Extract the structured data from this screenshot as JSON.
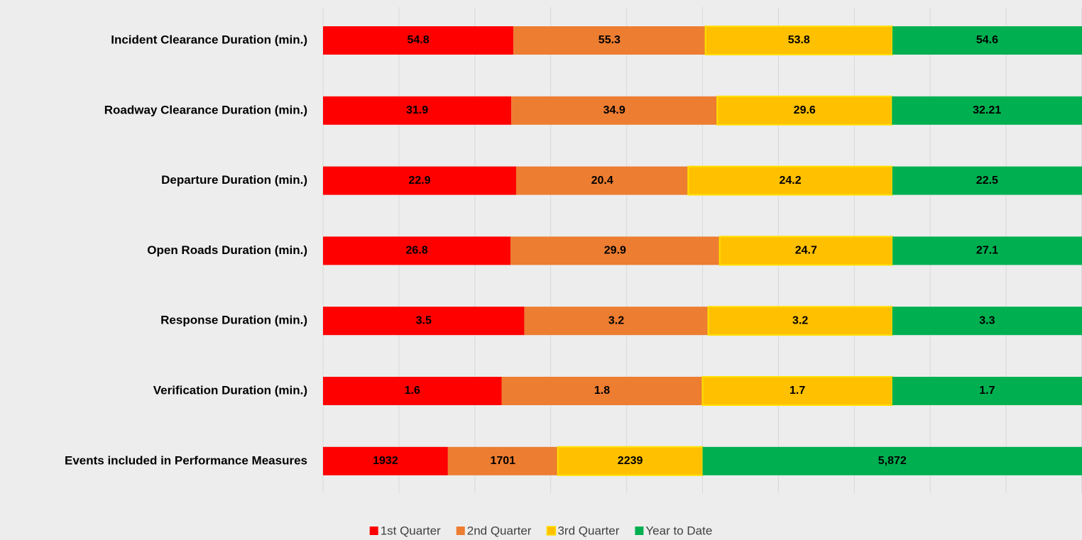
{
  "chart_data": {
    "type": "bar",
    "orientation": "horizontal",
    "stacking": "percent",
    "categories": [
      "Incident Clearance Duration (min.)",
      "Roadway Clearance Duration (min.)",
      "Departure Duration (min.)",
      "Open Roads Duration (min.)",
      "Response Duration (min.)",
      "Verification Duration (min.)",
      "Events included in Performance Measures"
    ],
    "series": [
      {
        "name": "1st Quarter",
        "color": "#ff0000",
        "values": [
          54.8,
          31.9,
          22.9,
          26.8,
          3.5,
          1.6,
          1932
        ]
      },
      {
        "name": "2nd Quarter",
        "color": "#ed7d31",
        "values": [
          55.3,
          34.9,
          20.4,
          29.9,
          3.2,
          1.8,
          1701
        ]
      },
      {
        "name": "3rd Quarter",
        "color": "#ffc000",
        "border": "#ffe000",
        "values": [
          53.8,
          29.6,
          24.2,
          24.7,
          3.2,
          1.7,
          2239
        ]
      },
      {
        "name": "Year to Date",
        "color": "#00b050",
        "values": [
          54.6,
          32.21,
          22.5,
          27.1,
          3.3,
          1.7,
          5872
        ],
        "value_labels": [
          "54.6",
          "32.21",
          "22.5",
          "27.1",
          "3.3",
          "1.7",
          "5,872"
        ]
      }
    ],
    "xlim": [
      0,
      100
    ],
    "xticks": [
      0,
      10,
      20,
      30,
      40,
      50,
      60,
      70,
      80,
      90,
      100
    ],
    "grid": true,
    "legend": "bottom"
  }
}
